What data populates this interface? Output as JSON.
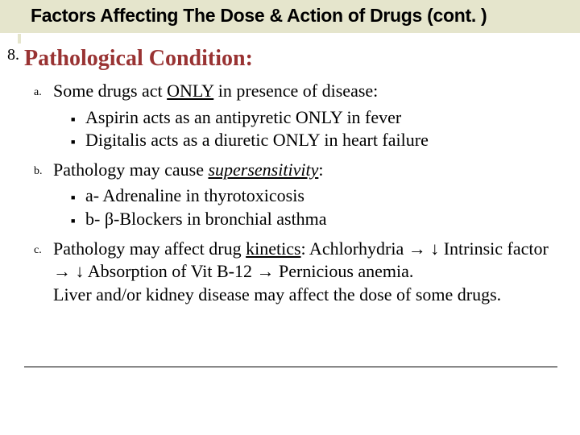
{
  "header": {
    "title": "Factors Affecting The Dose & Action of Drugs (cont. )"
  },
  "section": {
    "number": "8.",
    "heading": "Pathological Condition:"
  },
  "items": {
    "a": {
      "letter": "a.",
      "lead": "Some drugs act ",
      "underlined": "ONLY",
      "tail": " in presence of disease:",
      "bullets": [
        "Aspirin acts as an antipyretic ONLY in fever",
        "Digitalis acts as a diuretic ONLY in heart failure"
      ]
    },
    "b": {
      "letter": "b.",
      "lead": "Pathology may cause ",
      "underlined": "supersensitivity",
      "tail": ":",
      "bullets": [
        "a- Adrenaline in thyrotoxicosis",
        "b- β-Blockers in bronchial asthma"
      ]
    },
    "c": {
      "letter": "c.",
      "lead": "Pathology may affect drug ",
      "underlined": "kinetics",
      "tail_full": ": Achlorhydria → ↓ Intrinsic factor → ↓ Absorption of Vit B-12 → Pernicious anemia.",
      "line2": "Liver and/or kidney disease may affect the dose of some drugs."
    }
  },
  "glyphs": {
    "square": "■"
  },
  "colors": {
    "header_bg": "#e5e5cc",
    "heading": "#993333",
    "text": "#000000"
  }
}
